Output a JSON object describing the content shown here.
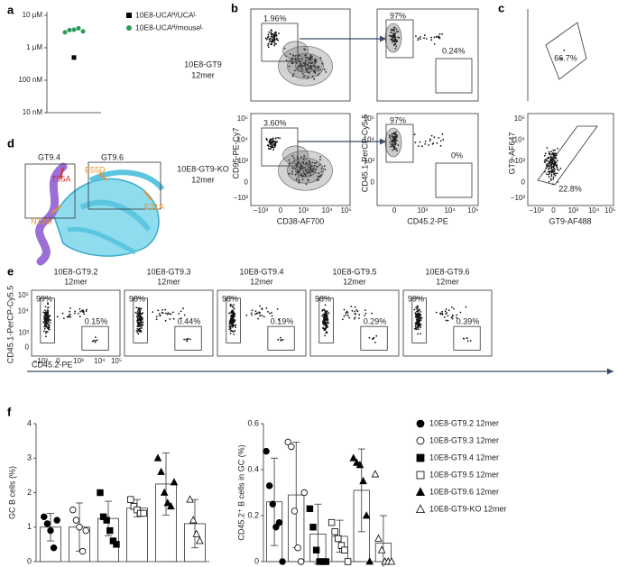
{
  "panel_a": {
    "letter": "a",
    "log": true,
    "ylim": [
      10,
      10000
    ],
    "yticks": [
      {
        "value": 10,
        "label": "10 nM"
      },
      {
        "value": 100,
        "label": "100 nM"
      },
      {
        "value": 1000,
        "label": "1 μM"
      },
      {
        "value": 10000,
        "label": "10 μM"
      }
    ],
    "series": [
      {
        "name": "10E8-UCAᴴ/UCAᴸ",
        "color": "#000000",
        "marker": "square",
        "values": [
          500
        ]
      },
      {
        "name": "10E8-UCAᴴ/mouseᴸ",
        "color": "#2e9a5a",
        "marker": "circle",
        "values": [
          3000,
          3500,
          3600,
          4000,
          3200
        ]
      }
    ]
  },
  "panel_b": {
    "letter": "b",
    "rows": [
      {
        "label": [
          "10E8-GT9",
          "12mer"
        ],
        "left_gate": "1.96%",
        "right_gates": [
          "97%",
          "0.24%"
        ]
      },
      {
        "label": [
          "10E8-GT9-KO",
          "12mer"
        ],
        "left_gate": "3.60%",
        "right_gates": [
          "97%",
          "0%"
        ]
      }
    ],
    "left_y_label": "CD95-PE-Cy7",
    "left_x_label": "CD38-AF700",
    "right_y_label": "CD45.1-PerCP-Cy5.5",
    "right_x_label": "CD45.2-PE",
    "left_y_ticks": [
      "10⁵",
      "10⁴",
      "10³",
      0,
      "−10³"
    ],
    "left_x_ticks": [
      "−10³",
      0,
      "10³",
      "10⁴",
      "10⁵"
    ],
    "right_y_ticks": [
      "10⁵",
      "10⁴",
      "10³",
      0
    ],
    "right_x_ticks": [
      0,
      "10³",
      "10⁴",
      "10⁵"
    ]
  },
  "panel_c": {
    "letter": "c",
    "gates": [
      "66.7%",
      "22.8%"
    ],
    "y_label": "GT9-AF647",
    "x_label": "GT9-AF488",
    "y_ticks": [
      "10⁵",
      "10⁴",
      "10³",
      0,
      "−10³"
    ],
    "x_ticks": [
      "−10³",
      0,
      "10³",
      "10⁴",
      "10⁵"
    ]
  },
  "panel_d": {
    "letter": "d",
    "boxes": [
      "GT9.4",
      "GT9.6"
    ],
    "mutations": [
      "T95A",
      "E55D",
      "E31A",
      "N101I"
    ]
  },
  "panel_e": {
    "letter": "e",
    "plots": [
      {
        "title": "10E8-GT9.2",
        "sub": "12mer",
        "gates": [
          "99%",
          "0.15%"
        ]
      },
      {
        "title": "10E8-GT9.3",
        "sub": "12mer",
        "gates": [
          "98%",
          "0.44%"
        ]
      },
      {
        "title": "10E8-GT9.4",
        "sub": "12mer",
        "gates": [
          "98%",
          "0.19%"
        ]
      },
      {
        "title": "10E8-GT9.5",
        "sub": "12mer",
        "gates": [
          "98%",
          "0.29%"
        ]
      },
      {
        "title": "10E8-GT9.6",
        "sub": "12mer",
        "gates": [
          "99%",
          "0.39%"
        ]
      }
    ],
    "y_label": "CD45.1-PerCP-Cy5.5",
    "x_label": "CD45.2-PE",
    "y_ticks": [
      "10⁵",
      "10⁴",
      "10³",
      0
    ],
    "x_ticks": [
      "−10³",
      0,
      "10³",
      "10⁴",
      "10⁵"
    ]
  },
  "panel_f": {
    "letter": "f",
    "groups": [
      {
        "name": "10E8-GT9.2 12mer",
        "marker": "circle",
        "filled": true
      },
      {
        "name": "10E8-GT9.3 12mer",
        "marker": "circle",
        "filled": false
      },
      {
        "name": "10E8-GT9.4 12mer",
        "marker": "square",
        "filled": true
      },
      {
        "name": "10E8-GT9.5 12mer",
        "marker": "square",
        "filled": false
      },
      {
        "name": "10E8-GT9.6 12mer",
        "marker": "triangle",
        "filled": true
      },
      {
        "name": "10E8-GT9-KO 12mer",
        "marker": "triangle",
        "filled": false
      }
    ],
    "left": {
      "y_label": "GC B cells (%)",
      "ylim": [
        0,
        4
      ],
      "yticks": [
        0,
        1,
        2,
        3,
        4
      ],
      "means": [
        1.0,
        1.0,
        1.25,
        1.55,
        2.25,
        1.1
      ],
      "errors": [
        0.4,
        0.7,
        0.5,
        0.25,
        0.9,
        0.7
      ],
      "points": [
        [
          1.3,
          1.1,
          0.9,
          0.4,
          1.2
        ],
        [
          1.5,
          1.2,
          1.0,
          0.3,
          0.9
        ],
        [
          2.0,
          1.3,
          1.2,
          0.9,
          0.6,
          0.5
        ],
        [
          1.8,
          1.6,
          1.5,
          1.4,
          1.4
        ],
        [
          3.0,
          2.6,
          2.0,
          1.7,
          1.6,
          2.3
        ],
        [
          1.8,
          1.2,
          0.8,
          0.6
        ]
      ]
    },
    "right": {
      "y_label": "CD45.2⁺ B cells in GC (%)",
      "ylim": [
        0,
        0.6
      ],
      "yticks": [
        0,
        0.2,
        0.4,
        0.6
      ],
      "means": [
        0.26,
        0.29,
        0.12,
        0.11,
        0.31,
        0.08
      ],
      "errors": [
        0.19,
        0.23,
        0.13,
        0.07,
        0.18,
        0.12
      ],
      "points": [
        [
          0.48,
          0.33,
          0.25,
          0.15,
          0.17,
          0
        ],
        [
          0.52,
          0.5,
          0.22,
          0.06,
          0,
          0.3
        ],
        [
          0.23,
          0.15,
          0.05,
          0,
          0,
          0
        ],
        [
          0.17,
          0.13,
          0.1,
          0.07,
          0.05,
          0
        ],
        [
          0.45,
          0.43,
          0.42,
          0.35,
          0.2,
          0
        ],
        [
          0.38,
          0.1,
          0.05,
          0,
          0,
          0
        ]
      ]
    }
  }
}
